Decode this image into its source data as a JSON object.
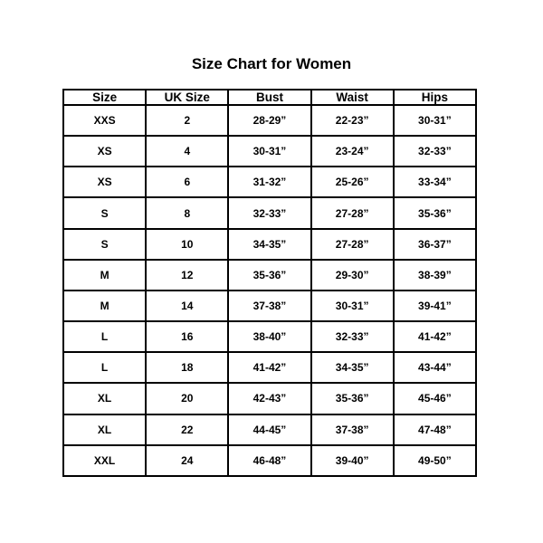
{
  "title": "Size Chart for Women",
  "colors": {
    "background": "#ffffff",
    "text": "#000000",
    "table_border": "#000000"
  },
  "chart_data": {
    "type": "table",
    "title": "Size Chart for Women",
    "columns": [
      "Size",
      "UK Size",
      "Bust",
      "Waist",
      "Hips"
    ],
    "rows": [
      [
        "XXS",
        "2",
        "28-29”",
        "22-23”",
        "30-31”"
      ],
      [
        "XS",
        "4",
        "30-31”",
        "23-24”",
        "32-33”"
      ],
      [
        "XS",
        "6",
        "31-32”",
        "25-26”",
        "33-34”"
      ],
      [
        "S",
        "8",
        "32-33”",
        "27-28”",
        "35-36”"
      ],
      [
        "S",
        "10",
        "34-35”",
        "27-28”",
        "36-37”"
      ],
      [
        "M",
        "12",
        "35-36”",
        "29-30”",
        "38-39”"
      ],
      [
        "M",
        "14",
        "37-38”",
        "30-31”",
        "39-41”"
      ],
      [
        "L",
        "16",
        "38-40”",
        "32-33”",
        "41-42”"
      ],
      [
        "L",
        "18",
        "41-42”",
        "34-35”",
        "43-44”"
      ],
      [
        "XL",
        "20",
        "42-43”",
        "35-36”",
        "45-46”"
      ],
      [
        "XL",
        "22",
        "44-45”",
        "37-38”",
        "47-48”"
      ],
      [
        "XXL",
        "24",
        "46-48”",
        "39-40”",
        "49-50”"
      ]
    ],
    "layout": {
      "columns_equal_width": true,
      "header_row": true,
      "grid": "all-borders"
    }
  }
}
